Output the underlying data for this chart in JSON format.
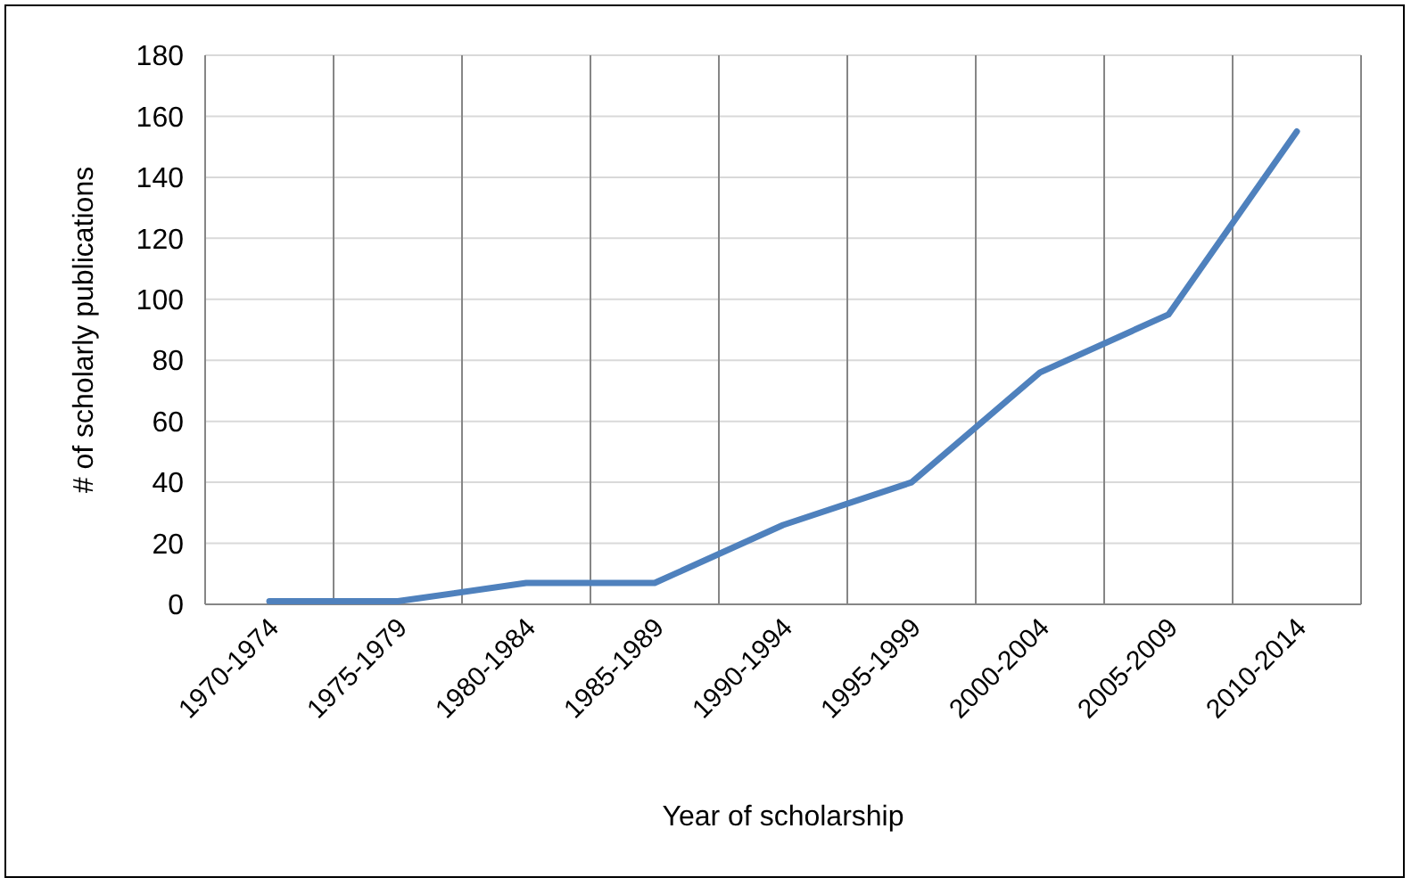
{
  "chart_data": {
    "type": "line",
    "xlabel": "Year of scholarship",
    "ylabel": "# of scholarly publications",
    "categories": [
      "1970-1974",
      "1975-1979",
      "1980-1984",
      "1985-1989",
      "1990-1994",
      "1995-1999",
      "2000-2004",
      "2005-2009",
      "2010-2014"
    ],
    "series": [
      {
        "color": "#4f81bd",
        "values": [
          1,
          1,
          7,
          7,
          26,
          40,
          76,
          95,
          155
        ]
      }
    ],
    "ylim": [
      0,
      180
    ],
    "yticks": [
      0,
      20,
      40,
      60,
      80,
      100,
      120,
      140,
      160,
      180
    ],
    "grid": true,
    "marker": "none",
    "line_style": "solid"
  }
}
